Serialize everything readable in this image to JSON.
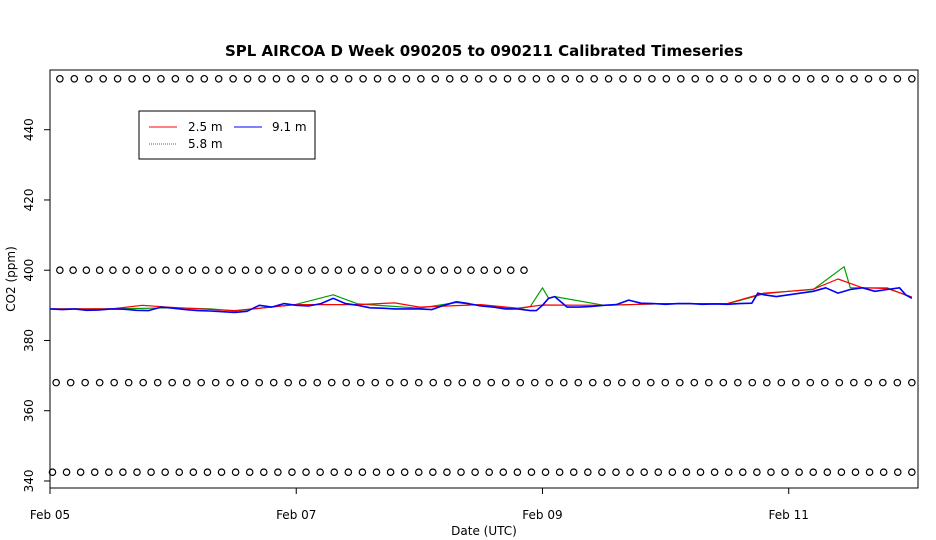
{
  "chart_data": {
    "type": "line",
    "title": "SPL AIRCOA D  Week 090205 to 090211  Calibrated Timeseries",
    "xlabel": "Date (UTC)",
    "ylabel": "CO2 (ppm)",
    "xlim": [
      0,
      7.05
    ],
    "ylim": [
      338,
      457
    ],
    "x_ticks": [
      {
        "value": 0,
        "label": "Feb 05"
      },
      {
        "value": 2,
        "label": "Feb 07"
      },
      {
        "value": 4,
        "label": "Feb 09"
      },
      {
        "value": 6,
        "label": "Feb 11"
      }
    ],
    "y_ticks": [
      {
        "value": 340,
        "label": "340"
      },
      {
        "value": 360,
        "label": "360"
      },
      {
        "value": 380,
        "label": "380"
      },
      {
        "value": 400,
        "label": "400"
      },
      {
        "value": 420,
        "label": "420"
      },
      {
        "value": 440,
        "label": "440"
      }
    ],
    "legend": {
      "placement": "top-left",
      "entries": [
        {
          "label": "2.5 m",
          "color": "#ff0000"
        },
        {
          "label": "5.8 m",
          "color": "#00a000"
        },
        {
          "label": "9.1 m",
          "color": "#0000ff"
        }
      ]
    },
    "series": [
      {
        "name": "9.1 m",
        "color": "#0000ff",
        "x": [
          0,
          0.1,
          0.2,
          0.3,
          0.4,
          0.5,
          0.6,
          0.7,
          0.8,
          0.9,
          1.0,
          1.1,
          1.2,
          1.3,
          1.4,
          1.5,
          1.6,
          1.7,
          1.8,
          1.9,
          2.0,
          2.1,
          2.2,
          2.3,
          2.4,
          2.5,
          2.6,
          2.7,
          2.8,
          2.9,
          3.0,
          3.1,
          3.2,
          3.3,
          3.4,
          3.5,
          3.6,
          3.7,
          3.8,
          3.9,
          3.95,
          4.0,
          4.05,
          4.1,
          4.2,
          4.3,
          4.4,
          4.5,
          4.6,
          4.7,
          4.8,
          4.9,
          5.0,
          5.1,
          5.2,
          5.3,
          5.4,
          5.5,
          5.6,
          5.7,
          5.75,
          5.8,
          5.9,
          6.0,
          6.1,
          6.2,
          6.3,
          6.4,
          6.5,
          6.6,
          6.7,
          6.8,
          6.9,
          6.95,
          7.0
        ],
        "values": [
          389,
          388.8,
          389,
          388.6,
          388.7,
          389,
          388.9,
          388.6,
          388.5,
          389.5,
          389.2,
          388.8,
          388.5,
          388.4,
          388.2,
          388,
          388.3,
          390,
          389.5,
          390.5,
          390,
          389.8,
          390.5,
          392,
          390.5,
          390,
          389.3,
          389.2,
          389,
          389,
          389,
          388.8,
          390,
          391,
          390.5,
          389.8,
          389.5,
          389,
          389,
          388.5,
          388.5,
          390,
          392,
          392.5,
          389.5,
          389.5,
          389.7,
          390,
          390.2,
          391.5,
          390.6,
          390.5,
          390.3,
          390.5,
          390.5,
          390.3,
          390.4,
          390.3,
          390.5,
          390.6,
          393.5,
          393,
          392.5,
          393,
          393.5,
          394,
          395,
          393.5,
          394.5,
          395,
          394,
          394.5,
          395,
          393,
          392
        ]
      },
      {
        "name": "5.8 m",
        "color": "#00a000",
        "x": [
          0,
          0.5,
          1.0,
          1.3,
          1.5,
          2.0,
          2.3,
          2.5,
          3.0,
          3.3,
          3.5,
          3.8,
          3.9,
          4.0,
          4.05,
          4.1,
          4.5,
          5.0,
          5.5,
          5.8,
          6.0,
          6.2,
          6.45,
          6.5,
          6.8,
          7.0
        ],
        "values": [
          389,
          389,
          389.3,
          389,
          388.4,
          390.3,
          393,
          390.4,
          389.2,
          390.8,
          390,
          389,
          389.6,
          395,
          392,
          392.5,
          390,
          390.5,
          390.4,
          393.3,
          394,
          394.5,
          401,
          395,
          395,
          392.2
        ]
      },
      {
        "name": "2.5 m",
        "color": "#ff0000",
        "x": [
          0,
          0.5,
          0.75,
          1.0,
          1.5,
          2.0,
          2.5,
          2.8,
          3.0,
          3.5,
          3.8,
          4.0,
          4.5,
          5.0,
          5.5,
          5.8,
          6.0,
          6.2,
          6.4,
          6.6,
          6.8,
          7.0
        ],
        "values": [
          389,
          389,
          390,
          389.4,
          388.5,
          390.2,
          390.2,
          390.7,
          389.5,
          390.2,
          389.2,
          390.1,
          390,
          390.5,
          390.5,
          393.5,
          394,
          394.6,
          397.5,
          395,
          394.8,
          392.4
        ]
      }
    ],
    "marker_rows": [
      {
        "y": 454.5,
        "x_start": 0.08,
        "x_end": 7.0,
        "count": 60
      },
      {
        "y": 400,
        "x_start": 0.08,
        "x_end": 3.85,
        "count": 36
      },
      {
        "y": 368,
        "x_start": 0.05,
        "x_end": 7.0,
        "count": 60
      },
      {
        "y": 342.5,
        "x_start": 0.02,
        "x_end": 7.0,
        "count": 62
      }
    ]
  }
}
